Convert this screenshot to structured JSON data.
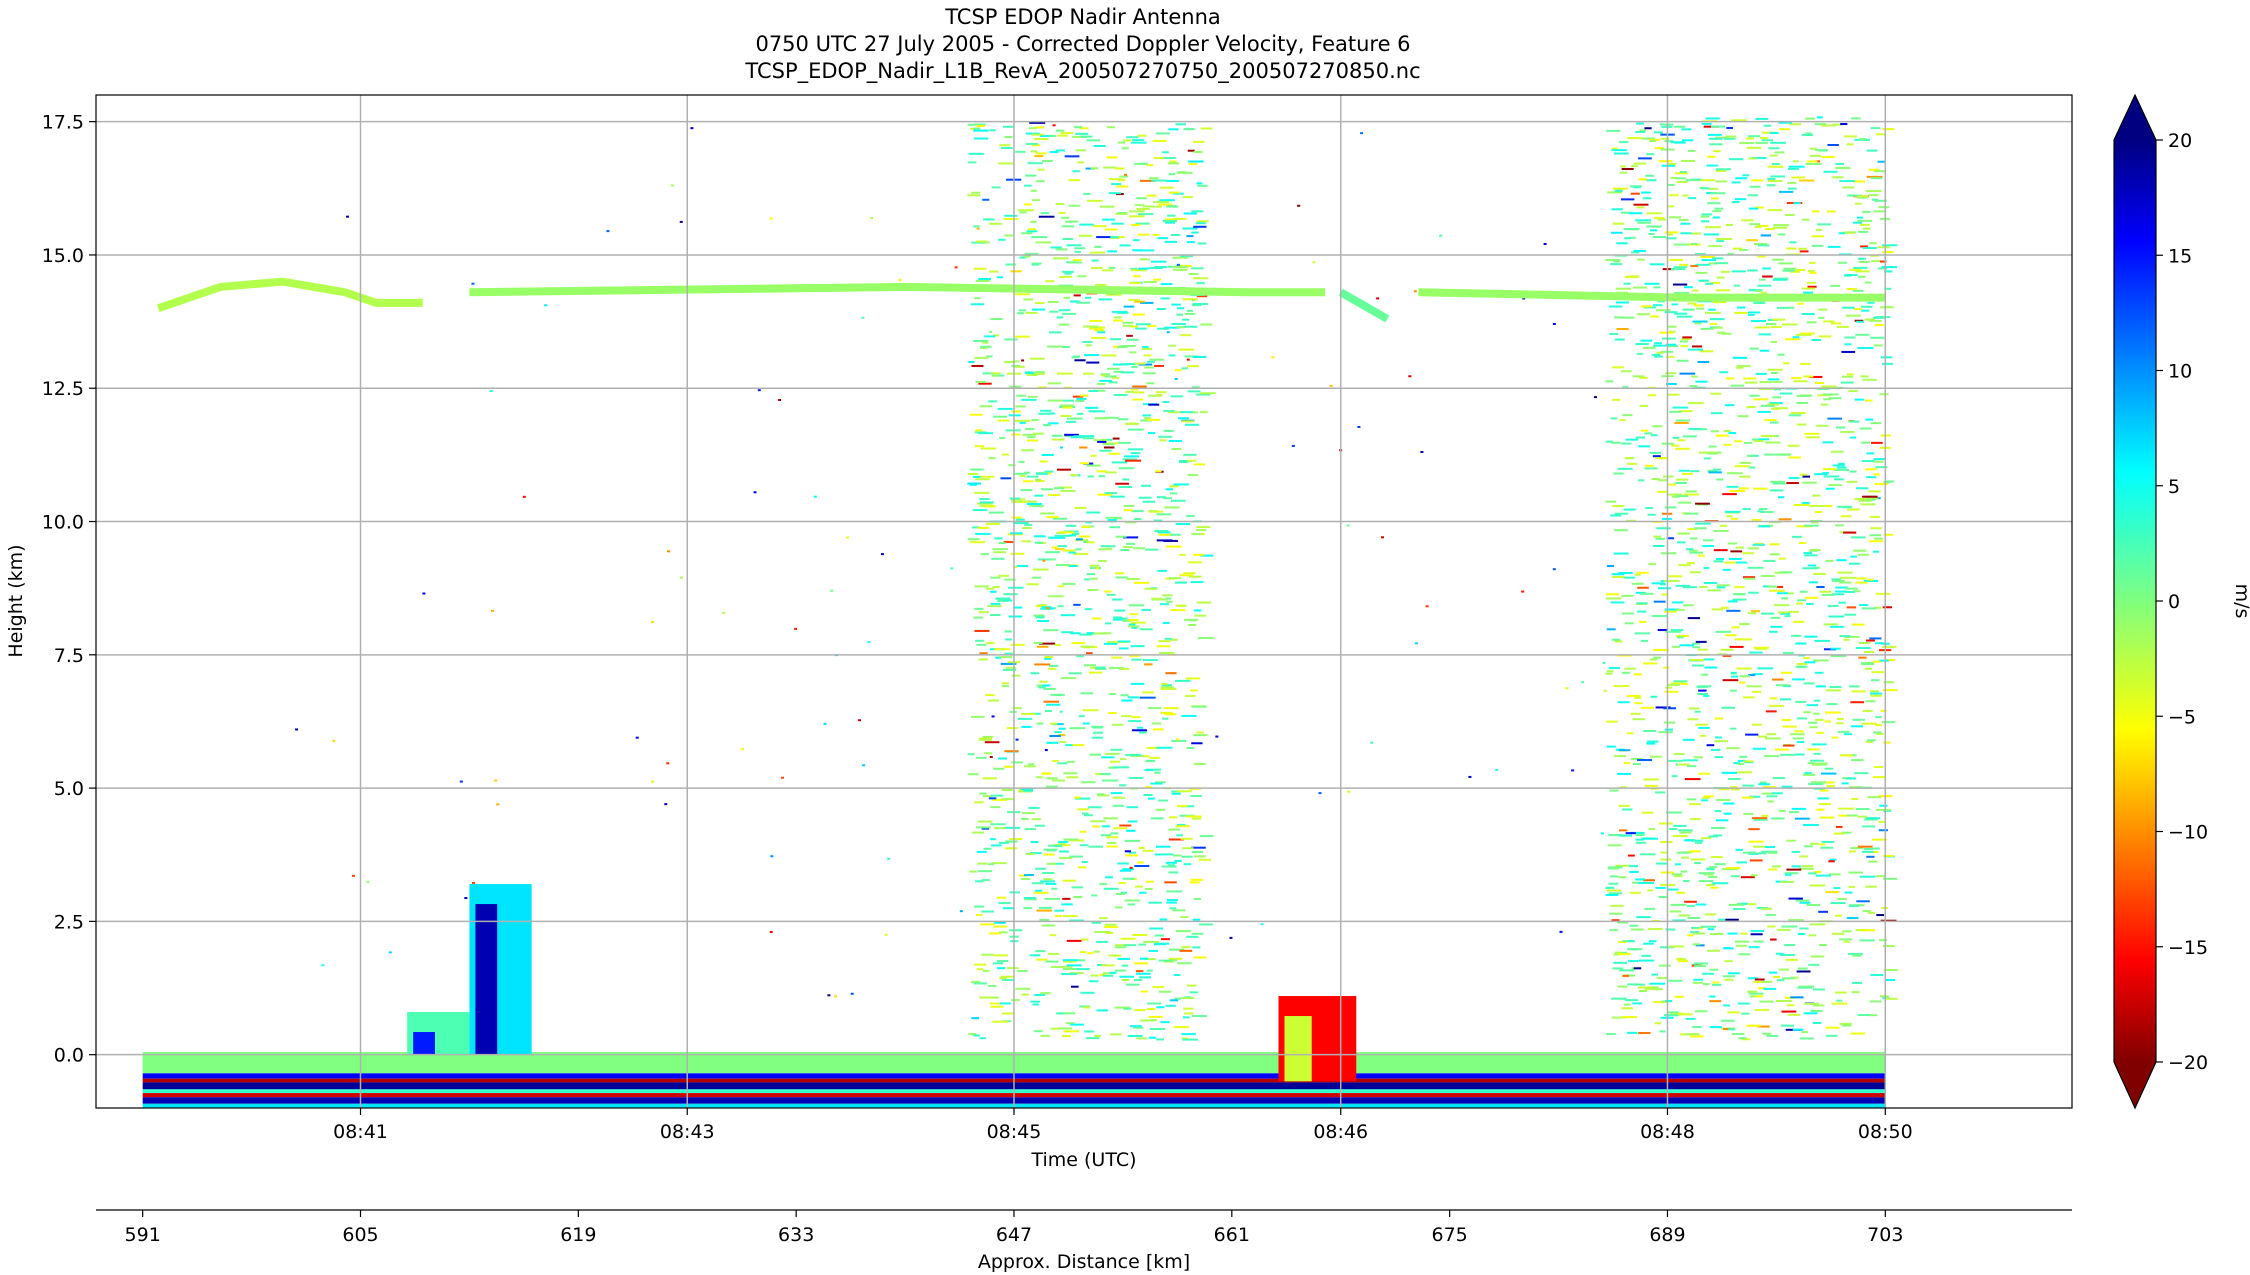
{
  "chart_data": {
    "type": "heatmap",
    "title_lines": [
      "TCSP EDOP Nadir Antenna",
      "0750 UTC 27 July 2005 - Corrected Doppler Velocity, Feature 6",
      "TCSP_EDOP_Nadir_L1B_RevA_200507270750_200507270850.nc"
    ],
    "xlabel": "Time (UTC)",
    "ylabel": "Height (km)",
    "x2label": "Approx. Distance [km]",
    "colorbar_label": "m/s",
    "colormap": "jet",
    "ylim": [
      -1.0,
      18.0
    ],
    "yticks": [
      0.0,
      2.5,
      5.0,
      7.5,
      10.0,
      12.5,
      15.0,
      17.5
    ],
    "ytick_labels": [
      "0.0",
      "2.5",
      "5.0",
      "7.5",
      "10.0",
      "12.5",
      "15.0",
      "17.5"
    ],
    "xlim": [
      588.0,
      715.0
    ],
    "xticks": [
      605,
      626,
      647,
      668,
      689,
      703
    ],
    "xtick_labels": [
      "08:41",
      "08:43",
      "08:45",
      "08:46",
      "08:48",
      "08:50"
    ],
    "x2ticks": [
      591,
      605,
      619,
      633,
      647,
      661,
      675,
      689,
      703
    ],
    "x2tick_labels": [
      "591",
      "605",
      "619",
      "633",
      "647",
      "661",
      "675",
      "689",
      "703"
    ],
    "clim": [
      -20,
      20
    ],
    "cticks": [
      20,
      15,
      10,
      5,
      0,
      -5,
      -10,
      -15,
      -20
    ],
    "ctick_labels": [
      "20",
      "15",
      "10",
      "5",
      "0",
      "−10",
      "−15",
      "−20"
    ],
    "ctick_labels_full": [
      "20",
      "15",
      "10",
      "5",
      "0",
      "−5",
      "−10",
      "−15",
      "−20"
    ],
    "grid": true,
    "colorbar_extend": "both",
    "features": {
      "tropopause_layer": [
        {
          "x": [
            592,
            596,
            600,
            604,
            606,
            609
          ],
          "y": [
            14.0,
            14.4,
            14.5,
            14.3,
            14.1,
            14.1
          ],
          "v": -2
        },
        {
          "x": [
            612,
            640,
            662,
            667
          ],
          "y": [
            14.3,
            14.4,
            14.3,
            14.3
          ],
          "v": -1
        },
        {
          "x": [
            668,
            671
          ],
          "y": [
            14.3,
            13.8
          ],
          "v": 1
        },
        {
          "x": [
            673,
            690,
            703
          ],
          "y": [
            14.3,
            14.2,
            14.2
          ],
          "v": -1
        }
      ],
      "noise_columns": [
        {
          "x": [
            644,
            659
          ],
          "y": [
            0.3,
            17.5
          ]
        },
        {
          "x": [
            685,
            703
          ],
          "y": [
            0.3,
            17.6
          ]
        }
      ],
      "convective_cells": [
        {
          "x": [
            612,
            616
          ],
          "y": [
            0.0,
            3.2
          ],
          "v": 6
        },
        {
          "x": [
            608,
            612
          ],
          "y": [
            0.0,
            0.8
          ],
          "v": 2
        },
        {
          "x": [
            664,
            669
          ],
          "y": [
            -0.5,
            1.1
          ],
          "v": -15
        }
      ],
      "surface_band": {
        "x": [
          591,
          703
        ],
        "y": [
          -1.0,
          0.0
        ]
      }
    }
  }
}
